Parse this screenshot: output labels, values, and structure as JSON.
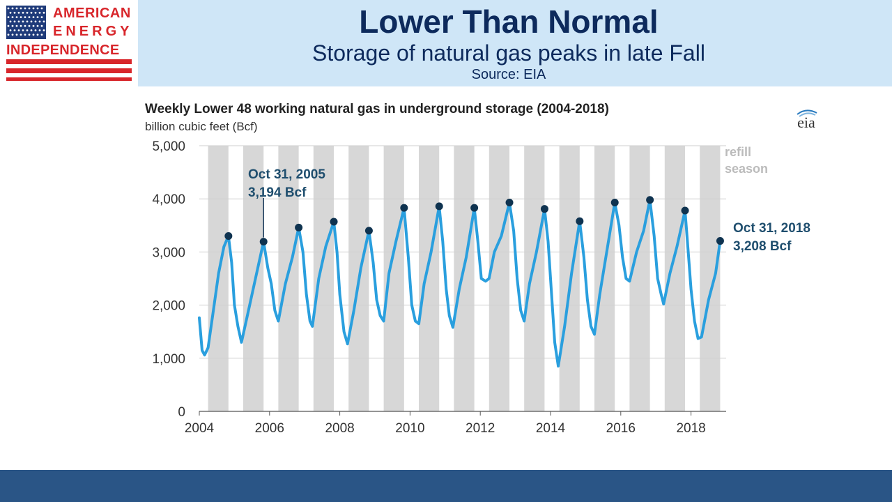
{
  "logo": {
    "line1": "AMERICAN",
    "line2": "ENERGY",
    "line3": "INDEPENDENCE",
    "flag_blue": "#1f3b7a",
    "red": "#d8262b"
  },
  "slide": {
    "title": "Lower Than Normal",
    "subtitle": "Storage of natural gas peaks in late Fall",
    "source": "Source: EIA"
  },
  "footer": {
    "color": "#2a5586"
  },
  "chart_data": {
    "type": "line",
    "title": "Weekly Lower 48 working natural gas in underground storage (2004-2018)",
    "units": "billion cubic feet (Bcf)",
    "source_logo": "eia",
    "x_range": [
      2004,
      2019
    ],
    "ylim": [
      0,
      5000
    ],
    "y_ticks": [
      0,
      1000,
      2000,
      3000,
      4000,
      5000
    ],
    "y_tick_labels": [
      "0",
      "1,000",
      "2,000",
      "3,000",
      "4,000",
      "5,000"
    ],
    "x_ticks": [
      2004,
      2006,
      2008,
      2010,
      2012,
      2014,
      2016,
      2018
    ],
    "x_tick_labels": [
      "2004",
      "2006",
      "2008",
      "2010",
      "2012",
      "2014",
      "2016",
      "2018"
    ],
    "grid": "horizontal",
    "line_color": "#2a9fde",
    "shade_color": "#d7d7d7",
    "shade_label": "refill season",
    "shade_label_lines": [
      "refill",
      "season"
    ],
    "shade_ranges": [
      [
        2004.25,
        2004.83
      ],
      [
        2005.25,
        2005.83
      ],
      [
        2006.25,
        2006.83
      ],
      [
        2007.25,
        2007.83
      ],
      [
        2008.25,
        2008.83
      ],
      [
        2009.25,
        2009.83
      ],
      [
        2010.25,
        2010.83
      ],
      [
        2011.25,
        2011.83
      ],
      [
        2012.25,
        2012.83
      ],
      [
        2013.25,
        2013.83
      ],
      [
        2014.25,
        2014.83
      ],
      [
        2015.25,
        2015.83
      ],
      [
        2016.25,
        2016.83
      ],
      [
        2017.25,
        2017.83
      ],
      [
        2018.25,
        2018.83
      ]
    ],
    "series": [
      {
        "x": [
          2004.0,
          2004.08,
          2004.15,
          2004.25,
          2004.4,
          2004.55,
          2004.7,
          2004.83,
          2004.92,
          2005.0,
          2005.1,
          2005.2,
          2005.4,
          2005.6,
          2005.83,
          2005.95,
          2006.05,
          2006.15,
          2006.25,
          2006.45,
          2006.65,
          2006.83,
          2006.95,
          2007.05,
          2007.15,
          2007.22,
          2007.4,
          2007.6,
          2007.83,
          2007.92,
          2008.0,
          2008.12,
          2008.22,
          2008.4,
          2008.6,
          2008.83,
          2008.95,
          2009.05,
          2009.15,
          2009.25,
          2009.4,
          2009.6,
          2009.83,
          2009.95,
          2010.05,
          2010.15,
          2010.25,
          2010.4,
          2010.6,
          2010.83,
          2010.93,
          2011.03,
          2011.12,
          2011.22,
          2011.4,
          2011.6,
          2011.83,
          2011.93,
          2012.03,
          2012.15,
          2012.25,
          2012.4,
          2012.6,
          2012.83,
          2012.95,
          2013.05,
          2013.15,
          2013.25,
          2013.4,
          2013.6,
          2013.83,
          2013.93,
          2014.03,
          2014.12,
          2014.22,
          2014.4,
          2014.6,
          2014.83,
          2014.95,
          2015.05,
          2015.15,
          2015.25,
          2015.4,
          2015.6,
          2015.83,
          2015.95,
          2016.05,
          2016.15,
          2016.25,
          2016.45,
          2016.65,
          2016.83,
          2016.95,
          2017.05,
          2017.15,
          2017.22,
          2017.4,
          2017.6,
          2017.83,
          2017.92,
          2018.0,
          2018.1,
          2018.2,
          2018.3,
          2018.5,
          2018.7,
          2018.83
        ],
        "y": [
          1760,
          1150,
          1060,
          1200,
          1900,
          2600,
          3100,
          3300,
          2800,
          2000,
          1600,
          1300,
          1900,
          2500,
          3194,
          2700,
          2400,
          1900,
          1700,
          2400,
          2900,
          3460,
          3000,
          2200,
          1700,
          1600,
          2500,
          3100,
          3570,
          3000,
          2200,
          1500,
          1270,
          1900,
          2700,
          3400,
          2800,
          2100,
          1800,
          1700,
          2600,
          3200,
          3830,
          2900,
          2000,
          1700,
          1650,
          2400,
          3000,
          3860,
          3200,
          2300,
          1800,
          1580,
          2300,
          2900,
          3830,
          3200,
          2500,
          2450,
          2500,
          3000,
          3300,
          3930,
          3400,
          2500,
          1900,
          1700,
          2400,
          3000,
          3810,
          3200,
          2200,
          1300,
          850,
          1600,
          2600,
          3580,
          2900,
          2100,
          1600,
          1450,
          2200,
          3000,
          3930,
          3500,
          2900,
          2500,
          2450,
          3000,
          3400,
          3980,
          3300,
          2500,
          2200,
          2020,
          2600,
          3100,
          3780,
          3000,
          2300,
          1700,
          1370,
          1400,
          2100,
          2600,
          3208
        ]
      }
    ],
    "highlight_points": [
      [
        2004.83,
        3300
      ],
      [
        2005.83,
        3194
      ],
      [
        2006.83,
        3460
      ],
      [
        2007.83,
        3570
      ],
      [
        2008.83,
        3400
      ],
      [
        2009.83,
        3830
      ],
      [
        2010.83,
        3860
      ],
      [
        2011.83,
        3830
      ],
      [
        2012.83,
        3930
      ],
      [
        2013.83,
        3810
      ],
      [
        2014.83,
        3580
      ],
      [
        2015.83,
        3930
      ],
      [
        2016.83,
        3980
      ],
      [
        2017.83,
        3780
      ],
      [
        2018.83,
        3208
      ]
    ],
    "annotations": [
      {
        "date": "Oct 31, 2005",
        "value": "3,194 Bcf"
      },
      {
        "date": "Oct 31, 2018",
        "value": "3,208 Bcf"
      }
    ]
  }
}
